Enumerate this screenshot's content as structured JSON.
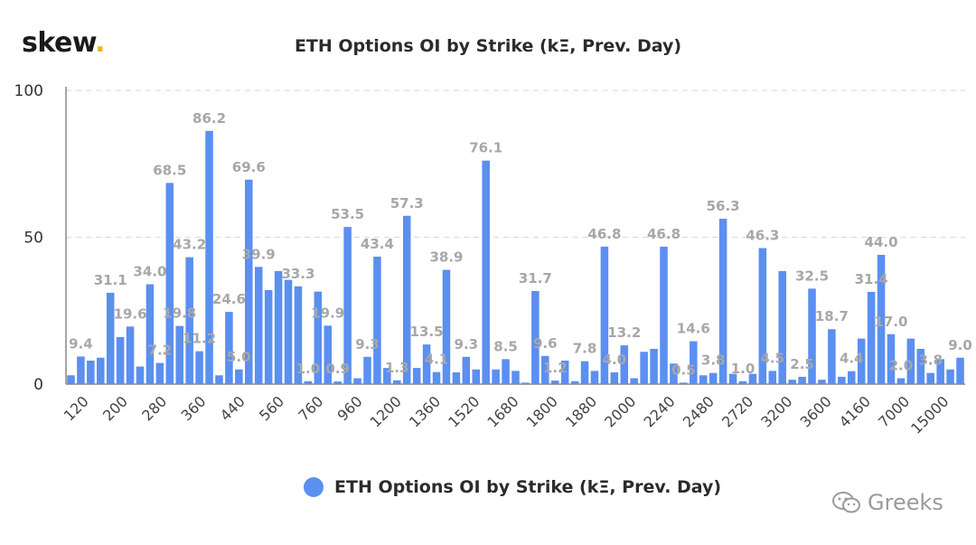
{
  "brand": {
    "logo_text": "skew",
    "logo_dot": "."
  },
  "watermark": {
    "text": "Greeks",
    "icon": "wechat-icon"
  },
  "legend": {
    "label": "ETH Options OI by Strike (kΞ, Prev. Day)"
  },
  "colors": {
    "bar": "#5b8ff0",
    "label": "#a7a7a7",
    "grid": "#dddddd",
    "axis": "#888888"
  },
  "chart_data": {
    "type": "bar",
    "title": "ETH Options OI by Strike (kΞ, Prev. Day)",
    "xlabel": "",
    "ylabel": "",
    "ylim": [
      0,
      100
    ],
    "yticks": [
      0,
      50,
      100
    ],
    "grid": "horizontal dashed",
    "legend_position": "bottom",
    "x_tick_labels": [
      "120",
      "200",
      "280",
      "360",
      "440",
      "560",
      "760",
      "960",
      "1200",
      "1360",
      "1520",
      "1680",
      "1800",
      "1880",
      "2000",
      "2240",
      "2480",
      "2720",
      "3200",
      "3600",
      "4160",
      "7000",
      "15000"
    ],
    "series": [
      {
        "name": "ETH Options OI by Strike (kΞ, Prev. Day)",
        "values": [
          3,
          9.4,
          8,
          9,
          31.1,
          16,
          19.6,
          6,
          34.0,
          7.2,
          68.5,
          19.8,
          43.2,
          11.2,
          86.2,
          3,
          24.6,
          5.0,
          69.6,
          39.9,
          32,
          38.5,
          35.5,
          33.3,
          1.0,
          31.5,
          19.9,
          0.9,
          53.5,
          2,
          9.3,
          43.4,
          5.5,
          1.3,
          57.3,
          5.5,
          13.5,
          4.1,
          38.9,
          4,
          9.3,
          5,
          76.1,
          5,
          8.5,
          4.5,
          0.5,
          31.7,
          9.6,
          1.2,
          8,
          1,
          7.8,
          4.5,
          46.8,
          4.0,
          13.2,
          2,
          11,
          12,
          46.8,
          7,
          0.5,
          14.6,
          3,
          3.8,
          56.3,
          3.5,
          1.0,
          3.5,
          46.3,
          4.5,
          38.5,
          1.5,
          2.5,
          32.5,
          1.5,
          18.7,
          2.5,
          4.4,
          15.5,
          31.4,
          44.0,
          17.0,
          2.0,
          15.5,
          12,
          3.8,
          8.5,
          5,
          9.0
        ]
      }
    ],
    "data_labels": [
      "",
      "9.4",
      "",
      "",
      "31.1",
      "",
      "19.6",
      "",
      "34.0",
      "7.2",
      "68.5",
      "19.8",
      "43.2",
      "11.2",
      "86.2",
      "",
      "24.6",
      "5.0",
      "69.6",
      "39.9",
      "",
      "",
      "",
      "33.3",
      "1.0",
      "",
      "19.9",
      "0.9",
      "53.5",
      "",
      "9.3",
      "43.4",
      "",
      "1.3",
      "57.3",
      "",
      "13.5",
      "4.1",
      "38.9",
      "",
      "9.3",
      "",
      "76.1",
      "",
      "8.5",
      "",
      "",
      "31.7",
      "9.6",
      "1.2",
      "",
      "",
      "7.8",
      "",
      "46.8",
      "4.0",
      "13.2",
      "",
      "",
      "",
      "46.8",
      "",
      "0.5",
      "14.6",
      "",
      "3.8",
      "56.3",
      "",
      "1.0",
      "",
      "46.3",
      "4.5",
      "",
      "",
      "2.5",
      "32.5",
      "",
      "18.7",
      "",
      "4.4",
      "",
      "31.4",
      "44.0",
      "17.0",
      "2.0",
      "",
      "",
      "3.8",
      "",
      "",
      "9.0"
    ]
  }
}
